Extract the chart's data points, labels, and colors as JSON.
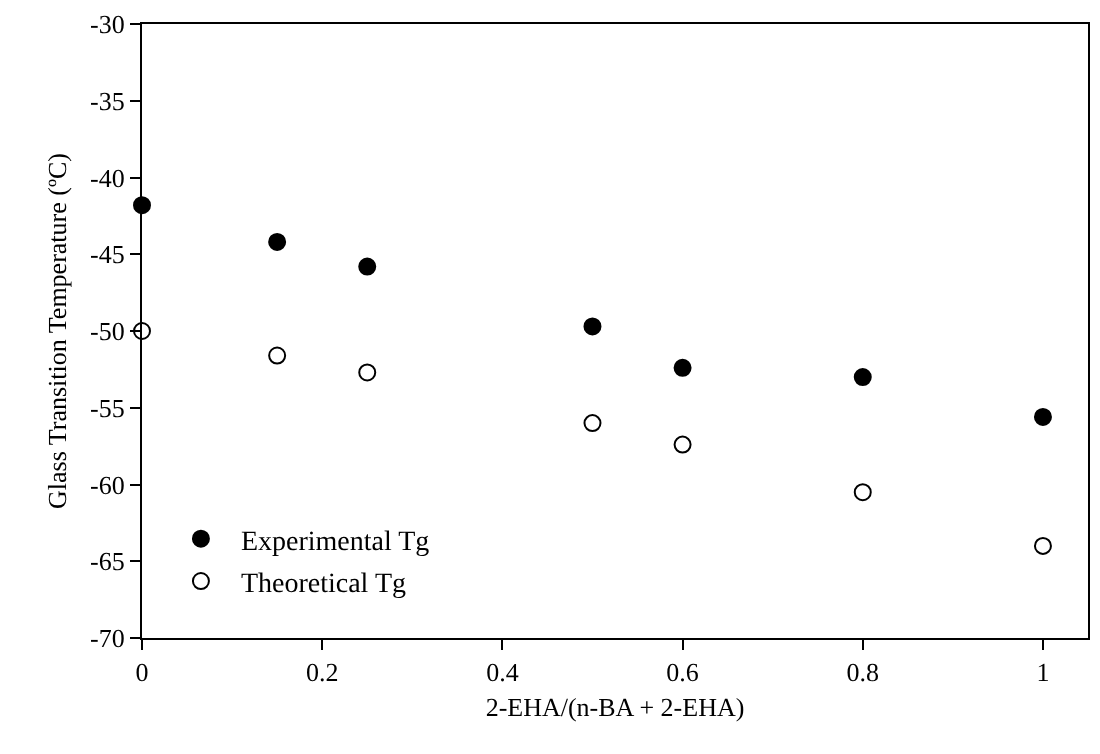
{
  "chart_data": {
    "type": "scatter",
    "xlabel": "2-EHA/(n-BA + 2-EHA)",
    "ylabel": "Glass Transition Temperature (ºC)",
    "x": [
      0,
      0.15,
      0.25,
      0.5,
      0.6,
      0.8,
      1
    ],
    "series": [
      {
        "name": "Experimental Tg",
        "color": "#000000",
        "values": [
          -41.8,
          -44.2,
          -45.8,
          -49.7,
          -52.4,
          -53.0,
          -55.6
        ]
      },
      {
        "name": "Theoretical Tg",
        "color": "#ffffff",
        "values": [
          -50.0,
          -51.6,
          -52.7,
          -56.0,
          -57.4,
          -60.5,
          -64.0
        ]
      }
    ],
    "xlim": [
      0,
      1.05
    ],
    "xticks": [
      0,
      0.2,
      0.4,
      0.6,
      0.8,
      1
    ],
    "ylim": [
      -70,
      -30
    ],
    "yticks": [
      -70,
      -65,
      -60,
      -55,
      -50,
      -45,
      -40,
      -35,
      -30
    ],
    "legend": "bottom left",
    "marker": "circle"
  }
}
